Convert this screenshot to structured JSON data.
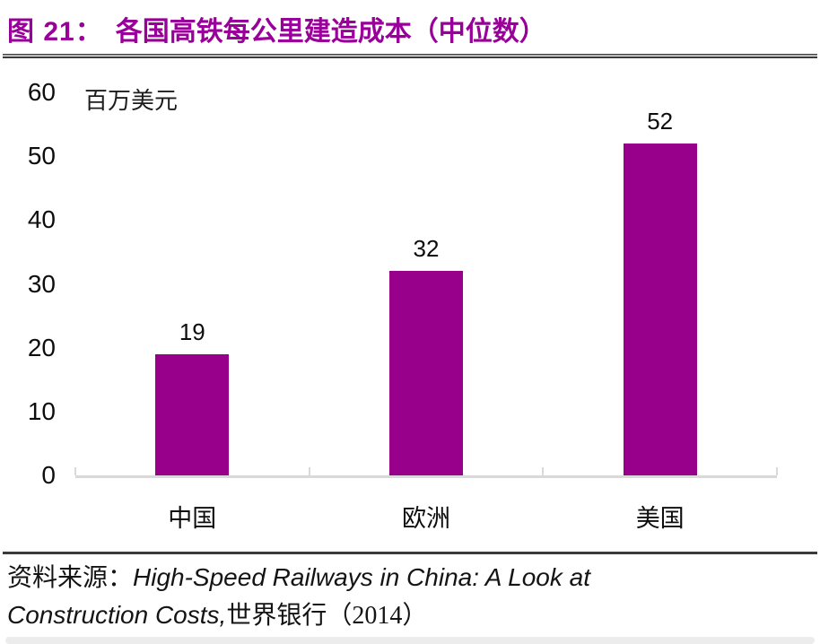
{
  "header": {
    "title_prefix": "图 21：",
    "title_text": "各国高铁每公里建造成本（中位数）"
  },
  "chart_data": {
    "type": "bar",
    "title": "各国高铁每公里建造成本（中位数）",
    "unit_label": "百万美元",
    "categories": [
      "中国",
      "欧洲",
      "美国"
    ],
    "values": [
      19,
      32,
      52
    ],
    "data_labels": true,
    "ylim": [
      0,
      60
    ],
    "yticks": [
      0,
      10,
      20,
      30,
      40,
      50,
      60
    ],
    "grid": false,
    "legend": false,
    "bar_color": "#98008C"
  },
  "footer": {
    "source_prefix": "资料来源：",
    "source_title_italic": "High-Speed Railways in China: A Look at Construction Costs,",
    "source_suffix": "世界银行（2014）"
  },
  "colors": {
    "accent_purple": "#990099",
    "bar_fill": "#98008C",
    "axis_line": "#D9D9D9",
    "divider_dark": "#3A3A3A",
    "text": "#111111"
  }
}
